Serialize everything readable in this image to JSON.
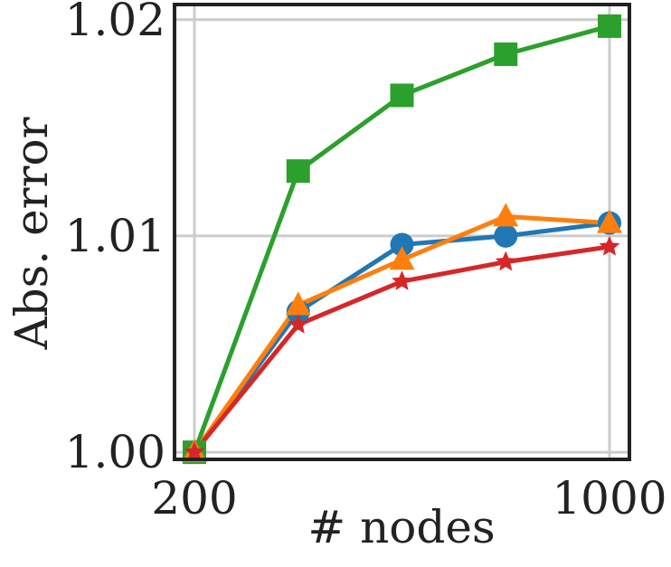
{
  "chart_data": {
    "type": "line",
    "title": "",
    "xlabel": "# nodes",
    "ylabel": "Abs. error",
    "xlim": [
      200,
      1000
    ],
    "ylim": [
      0.99967,
      1.0207
    ],
    "x_ticks": [
      200,
      1000
    ],
    "x_tick_labels": [
      "200",
      "1000"
    ],
    "y_ticks": [
      1.0,
      1.01,
      1.02
    ],
    "y_tick_labels": [
      "1.00",
      "1.01",
      "1.02"
    ],
    "grid": true,
    "legend": "none",
    "x": [
      200,
      400,
      600,
      800,
      1000
    ],
    "series": [
      {
        "color": "#1f77b4",
        "marker": "circle",
        "values": [
          1.0,
          1.0065,
          1.0096,
          1.01,
          1.0106
        ]
      },
      {
        "color": "#2ca02c",
        "marker": "square",
        "values": [
          1.0,
          1.013,
          1.0165,
          1.0184,
          1.0197
        ]
      },
      {
        "color": "#ff7f0e",
        "marker": "triangle",
        "values": [
          1.0,
          1.0068,
          1.0089,
          1.0109,
          1.0106
        ]
      },
      {
        "color": "#d62728",
        "marker": "star",
        "values": [
          1.0,
          1.0059,
          1.0079,
          1.0088,
          1.0095
        ]
      }
    ]
  }
}
